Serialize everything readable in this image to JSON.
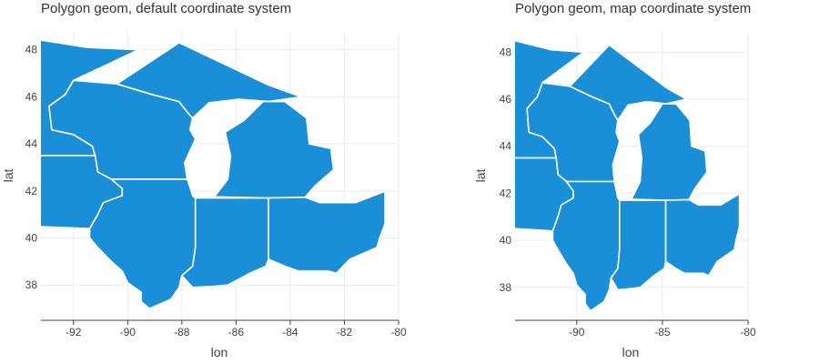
{
  "chart_data": [
    {
      "type": "map",
      "title": "Polygon geom, default coordinate system",
      "xlabel": "lon",
      "ylabel": "lat",
      "xlim": [
        -93.2,
        -80.0
      ],
      "ylim": [
        36.5,
        48.8
      ],
      "xticks": [
        -92,
        -90,
        -88,
        -86,
        -84,
        -82,
        -80
      ],
      "yticks": [
        38,
        40,
        42,
        44,
        46,
        48
      ],
      "grid": true,
      "fill_color": "#1a8ed6",
      "polygons": [
        {
          "name": "Minnesota",
          "points": [
            [
              -89.6,
              48.0
            ],
            [
              -92.0,
              46.7
            ],
            [
              -92.3,
              46.1
            ],
            [
              -92.9,
              45.6
            ],
            [
              -92.8,
              44.6
            ],
            [
              -92.0,
              44.4
            ],
            [
              -91.3,
              43.9
            ],
            [
              -91.2,
              43.5
            ],
            [
              -96.45,
              43.5
            ],
            [
              -96.45,
              45.3
            ],
            [
              -97.2,
              48.0
            ],
            [
              -97.2,
              49.0
            ],
            [
              -95.2,
              49.0
            ],
            [
              -94.8,
              48.7
            ],
            [
              -91.5,
              48.1
            ],
            [
              -89.6,
              48.0
            ]
          ]
        },
        {
          "name": "Wisconsin",
          "points": [
            [
              -92.0,
              46.7
            ],
            [
              -90.4,
              46.55
            ],
            [
              -89.1,
              46.1
            ],
            [
              -88.1,
              45.8
            ],
            [
              -87.8,
              45.35
            ],
            [
              -87.6,
              45.1
            ],
            [
              -87.7,
              44.6
            ],
            [
              -87.5,
              44.2
            ],
            [
              -87.9,
              43.2
            ],
            [
              -87.8,
              42.5
            ],
            [
              -90.6,
              42.5
            ],
            [
              -91.1,
              42.8
            ],
            [
              -91.2,
              43.5
            ],
            [
              -91.3,
              43.9
            ],
            [
              -92.0,
              44.4
            ],
            [
              -92.8,
              44.6
            ],
            [
              -92.9,
              45.6
            ],
            [
              -92.3,
              46.1
            ],
            [
              -92.0,
              46.7
            ]
          ]
        },
        {
          "name": "Iowa",
          "points": [
            [
              -96.45,
              43.5
            ],
            [
              -91.2,
              43.5
            ],
            [
              -91.1,
              42.8
            ],
            [
              -90.6,
              42.5
            ],
            [
              -90.2,
              42.1
            ],
            [
              -90.2,
              41.8
            ],
            [
              -90.9,
              41.5
            ],
            [
              -91.1,
              41.0
            ],
            [
              -91.4,
              40.4
            ],
            [
              -95.8,
              40.6
            ],
            [
              -96.0,
              41.2
            ],
            [
              -96.45,
              42.5
            ],
            [
              -96.45,
              43.5
            ]
          ]
        },
        {
          "name": "Illinois",
          "points": [
            [
              -90.6,
              42.5
            ],
            [
              -87.8,
              42.5
            ],
            [
              -87.6,
              41.8
            ],
            [
              -87.5,
              41.7
            ],
            [
              -87.5,
              39.6
            ],
            [
              -87.6,
              38.8
            ],
            [
              -88.0,
              38.4
            ],
            [
              -88.1,
              37.9
            ],
            [
              -88.4,
              37.4
            ],
            [
              -89.1,
              37.05
            ],
            [
              -89.2,
              37.0
            ],
            [
              -89.5,
              37.3
            ],
            [
              -89.5,
              37.7
            ],
            [
              -90.0,
              38.1
            ],
            [
              -90.2,
              38.6
            ],
            [
              -90.6,
              39.0
            ],
            [
              -91.1,
              39.6
            ],
            [
              -91.4,
              40.0
            ],
            [
              -91.4,
              40.4
            ],
            [
              -91.1,
              41.0
            ],
            [
              -90.9,
              41.5
            ],
            [
              -90.2,
              41.8
            ],
            [
              -90.2,
              42.1
            ],
            [
              -90.6,
              42.5
            ]
          ]
        },
        {
          "name": "Michigan",
          "points": [
            [
              -90.4,
              46.55
            ],
            [
              -88.1,
              48.3
            ],
            [
              -84.8,
              46.5
            ],
            [
              -83.6,
              46.0
            ],
            [
              -84.8,
              45.8
            ],
            [
              -85.9,
              45.9
            ],
            [
              -87.0,
              45.75
            ],
            [
              -87.6,
              45.1
            ],
            [
              -87.8,
              45.35
            ],
            [
              -88.1,
              45.8
            ],
            [
              -89.1,
              46.1
            ],
            [
              -90.4,
              46.55
            ]
          ]
        },
        {
          "name": "Michigan lower",
          "points": [
            [
              -86.8,
              41.75
            ],
            [
              -86.3,
              42.5
            ],
            [
              -86.2,
              43.5
            ],
            [
              -86.4,
              44.5
            ],
            [
              -85.7,
              45.0
            ],
            [
              -85.0,
              45.8
            ],
            [
              -84.2,
              45.8
            ],
            [
              -83.4,
              45.1
            ],
            [
              -83.3,
              44.0
            ],
            [
              -82.5,
              43.8
            ],
            [
              -82.4,
              42.9
            ],
            [
              -83.1,
              42.2
            ],
            [
              -83.45,
              41.73
            ],
            [
              -84.8,
              41.7
            ],
            [
              -86.8,
              41.75
            ]
          ]
        },
        {
          "name": "Indiana",
          "points": [
            [
              -87.5,
              41.7
            ],
            [
              -84.8,
              41.7
            ],
            [
              -84.8,
              39.1
            ],
            [
              -84.9,
              38.8
            ],
            [
              -85.5,
              38.5
            ],
            [
              -86.3,
              38.0
            ],
            [
              -86.8,
              37.95
            ],
            [
              -87.6,
              37.9
            ],
            [
              -88.0,
              38.4
            ],
            [
              -87.6,
              38.8
            ],
            [
              -87.5,
              39.6
            ],
            [
              -87.5,
              41.7
            ]
          ]
        },
        {
          "name": "Ohio",
          "points": [
            [
              -84.8,
              41.7
            ],
            [
              -83.45,
              41.73
            ],
            [
              -82.9,
              41.5
            ],
            [
              -81.6,
              41.5
            ],
            [
              -80.5,
              41.98
            ],
            [
              -80.5,
              40.6
            ],
            [
              -80.7,
              40.0
            ],
            [
              -80.8,
              39.6
            ],
            [
              -81.8,
              39.1
            ],
            [
              -82.3,
              38.5
            ],
            [
              -82.6,
              38.6
            ],
            [
              -83.1,
              38.6
            ],
            [
              -83.7,
              38.6
            ],
            [
              -84.2,
              38.8
            ],
            [
              -84.8,
              39.1
            ],
            [
              -84.8,
              41.7
            ]
          ]
        }
      ]
    },
    {
      "type": "map",
      "title": "Polygon geom, map coordinate system",
      "xlabel": "lon",
      "ylabel": "lat",
      "xlim": [
        -93.6,
        -80.0
      ],
      "ylim": [
        36.6,
        48.9
      ],
      "xticks": [
        -90,
        -85,
        -80
      ],
      "yticks": [
        38,
        40,
        42,
        44,
        46,
        48
      ],
      "grid": true,
      "fill_color": "#1a8ed6"
    }
  ]
}
